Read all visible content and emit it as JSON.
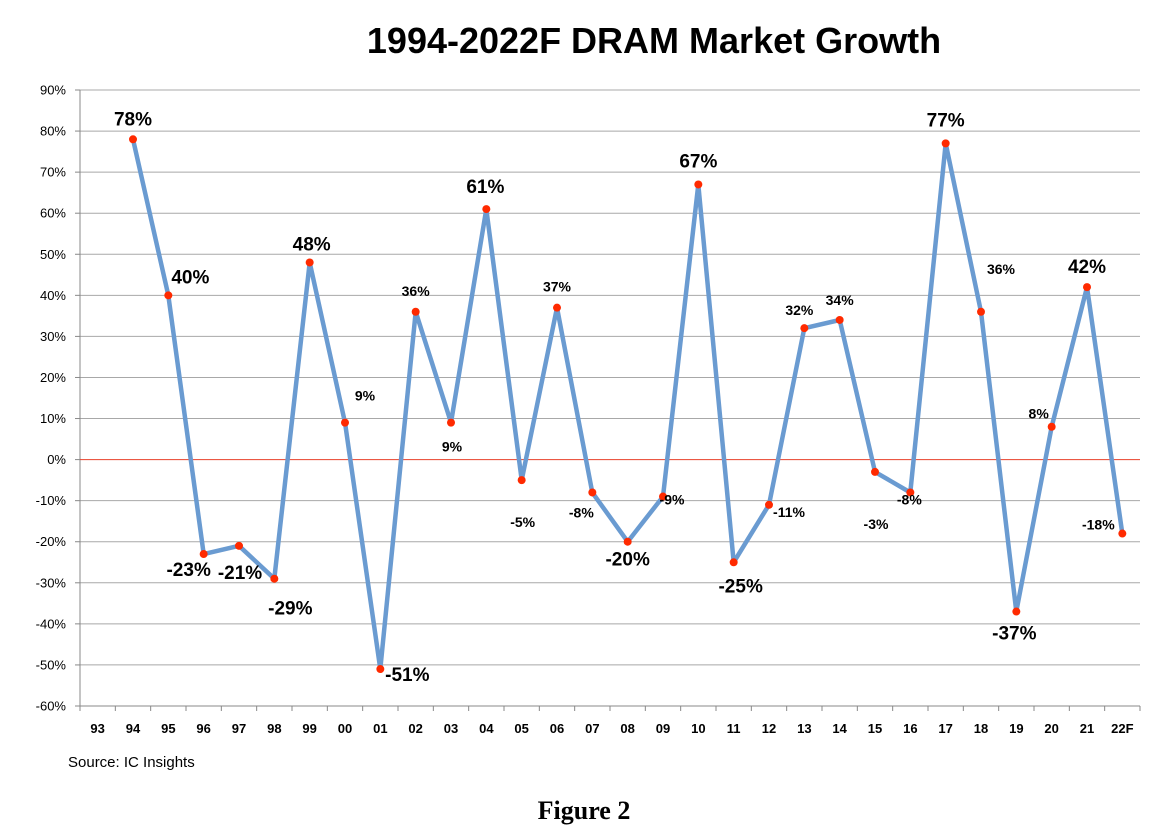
{
  "title": "1994-2022F DRAM Market Growth",
  "source": "Source:  IC Insights",
  "caption": "Figure 2",
  "colors": {
    "line": "#6a9bd1",
    "marker": "#ff2a00",
    "zero_line": "#e8402a",
    "grid": "#a8a8a8"
  },
  "chart_data": {
    "type": "line",
    "title": "1994-2022F DRAM Market Growth",
    "xlabel": "",
    "ylabel": "",
    "ylim": [
      -60,
      90
    ],
    "y_ticks": [
      "-60%",
      "-50%",
      "-40%",
      "-30%",
      "-20%",
      "-10%",
      "0%",
      "10%",
      "20%",
      "30%",
      "40%",
      "50%",
      "60%",
      "70%",
      "80%",
      "90%"
    ],
    "grid": true,
    "categories": [
      "93",
      "94",
      "95",
      "96",
      "97",
      "98",
      "99",
      "00",
      "01",
      "02",
      "03",
      "04",
      "05",
      "06",
      "07",
      "08",
      "09",
      "10",
      "11",
      "12",
      "13",
      "14",
      "15",
      "16",
      "17",
      "18",
      "19",
      "20",
      "21",
      "22F"
    ],
    "series": [
      {
        "values": [
          null,
          78,
          40,
          -23,
          -21,
          -29,
          48,
          9,
          -51,
          36,
          9,
          61,
          -5,
          37,
          -8,
          -20,
          -9,
          67,
          -25,
          -11,
          32,
          34,
          -3,
          -8,
          77,
          36,
          -37,
          8,
          42,
          -18
        ],
        "labels": [
          "",
          "78%",
          "40%",
          "-23%",
          "-21%",
          "-29%",
          "48%",
          "9%",
          "-51%",
          "36%",
          "9%",
          "61%",
          "-5%",
          "37%",
          "-8%",
          "-20%",
          "-9%",
          "67%",
          "-25%",
          "-11%",
          "32%",
          "34%",
          "-3%",
          "-8%",
          "77%",
          "36%",
          "-37%",
          "8%",
          "42%",
          "-18%"
        ]
      }
    ]
  }
}
